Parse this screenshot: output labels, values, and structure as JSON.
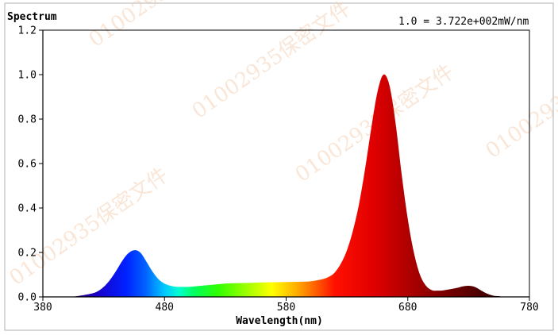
{
  "chart_data": {
    "type": "area",
    "title": "Spectrum",
    "annotation": "1.0 = 3.722e+002mW/nm",
    "xlabel": "Wavelength(nm)",
    "ylabel": "",
    "xlim": [
      380,
      780
    ],
    "ylim": [
      0,
      1.2
    ],
    "x_ticks": [
      "380",
      "480",
      "580",
      "680",
      "780"
    ],
    "y_ticks": [
      "0.0",
      "0.2",
      "0.4",
      "0.6",
      "0.8",
      "1.0",
      "1.2"
    ],
    "x_tick_values": [
      380,
      480,
      580,
      680,
      780
    ],
    "y_tick_values": [
      0,
      0.2,
      0.4,
      0.6,
      0.8,
      1.0,
      1.2
    ],
    "grid": false,
    "fill": "spectral",
    "x": [
      380,
      400,
      410,
      420,
      425,
      430,
      435,
      440,
      445,
      450,
      455,
      460,
      465,
      470,
      475,
      480,
      485,
      490,
      495,
      500,
      510,
      520,
      530,
      540,
      550,
      560,
      570,
      580,
      590,
      600,
      610,
      615,
      620,
      625,
      630,
      635,
      640,
      645,
      650,
      655,
      660,
      665,
      670,
      675,
      680,
      685,
      690,
      695,
      700,
      705,
      710,
      720,
      725,
      730,
      735,
      740,
      745,
      750,
      755,
      760,
      770,
      780
    ],
    "y": [
      0.0,
      0.0,
      0.005,
      0.015,
      0.025,
      0.045,
      0.075,
      0.115,
      0.16,
      0.195,
      0.21,
      0.2,
      0.16,
      0.115,
      0.08,
      0.06,
      0.05,
      0.045,
      0.045,
      0.045,
      0.05,
      0.055,
      0.06,
      0.062,
      0.063,
      0.065,
      0.066,
      0.067,
      0.068,
      0.07,
      0.08,
      0.09,
      0.11,
      0.15,
      0.21,
      0.3,
      0.42,
      0.58,
      0.76,
      0.92,
      1.0,
      0.95,
      0.78,
      0.55,
      0.35,
      0.2,
      0.1,
      0.05,
      0.03,
      0.028,
      0.03,
      0.04,
      0.047,
      0.05,
      0.045,
      0.03,
      0.015,
      0.006,
      0.003,
      0.0,
      0.0,
      0.0
    ]
  },
  "watermark_text": [
    "0100293",
    "5保密文件"
  ]
}
